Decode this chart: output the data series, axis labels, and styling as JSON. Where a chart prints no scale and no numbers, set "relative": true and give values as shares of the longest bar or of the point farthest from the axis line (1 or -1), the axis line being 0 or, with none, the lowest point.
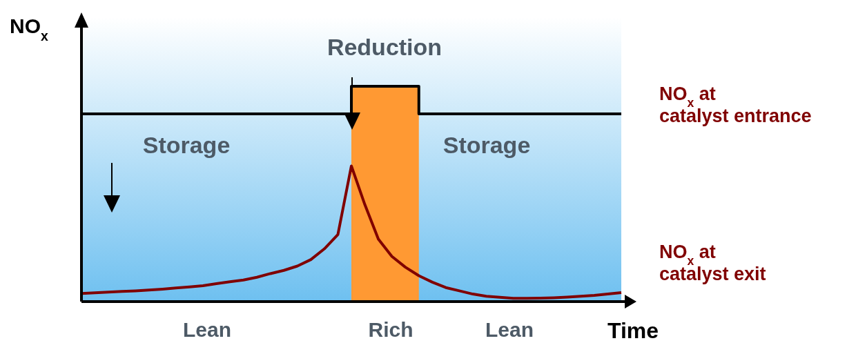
{
  "chart_data": {
    "type": "line",
    "relative": true,
    "xlabel": "Time",
    "ylabel": "NO$_{x}$",
    "tick_labels": false,
    "line_style": "solid",
    "marker": "none",
    "categories": [
      null,
      null,
      null,
      null,
      null,
      null,
      null,
      null,
      null,
      null,
      null,
      null,
      null,
      null,
      null,
      null,
      null,
      null,
      null,
      null,
      null,
      null,
      null,
      null,
      null,
      null,
      null,
      null,
      null,
      null,
      null,
      null,
      null,
      null,
      null,
      null,
      null,
      null,
      null,
      null,
      null
    ],
    "series": [
      {
        "type": "area",
        "color": "#ff9933",
        "values": [
          null,
          null,
          null,
          null,
          null,
          null,
          null,
          null,
          null,
          null,
          null,
          null,
          null,
          null,
          null,
          null,
          null,
          null,
          null,
          null,
          1,
          1,
          1,
          1,
          1,
          1,
          null,
          null,
          null,
          null,
          null,
          null,
          null,
          null,
          null,
          null,
          null,
          null,
          null,
          null,
          null
        ]
      },
      {
        "type": "step",
        "name": "NO$_{x}$ at catalyst entrance",
        "color": "#000000",
        "values": [
          0.872,
          0.872,
          0.872,
          0.872,
          0.872,
          0.872,
          0.872,
          0.872,
          0.872,
          0.872,
          0.872,
          0.872,
          0.872,
          0.872,
          0.872,
          0.872,
          0.872,
          0.872,
          0.872,
          0.872,
          1,
          1,
          1,
          1,
          1,
          0.872,
          0.872,
          0.872,
          0.872,
          0.872,
          0.872,
          0.872,
          0.872,
          0.872,
          0.872,
          0.872,
          0.872,
          0.872,
          0.872,
          0.872,
          0.872
        ]
      },
      {
        "name": "NO$_{x}$ at catalyst exit",
        "color": "#800000",
        "values": [
          0.038,
          0.041,
          0.044,
          0.047,
          0.05,
          0.054,
          0.058,
          0.063,
          0.068,
          0.074,
          0.083,
          0.092,
          0.1,
          0.113,
          0.13,
          0.145,
          0.165,
          0.195,
          0.245,
          0.311,
          0.63,
          0.45,
          0.29,
          0.21,
          0.16,
          0.12,
          0.09,
          0.065,
          0.05,
          0.035,
          0.025,
          0.02,
          0.015,
          0.015,
          0.016,
          0.018,
          0.021,
          0.025,
          0.029,
          0.035,
          0.042
        ]
      }
    ],
    "annotations": [
      "Storage",
      "Reduction",
      "Storage",
      "Lean",
      "Rich",
      "Lean"
    ]
  }
}
